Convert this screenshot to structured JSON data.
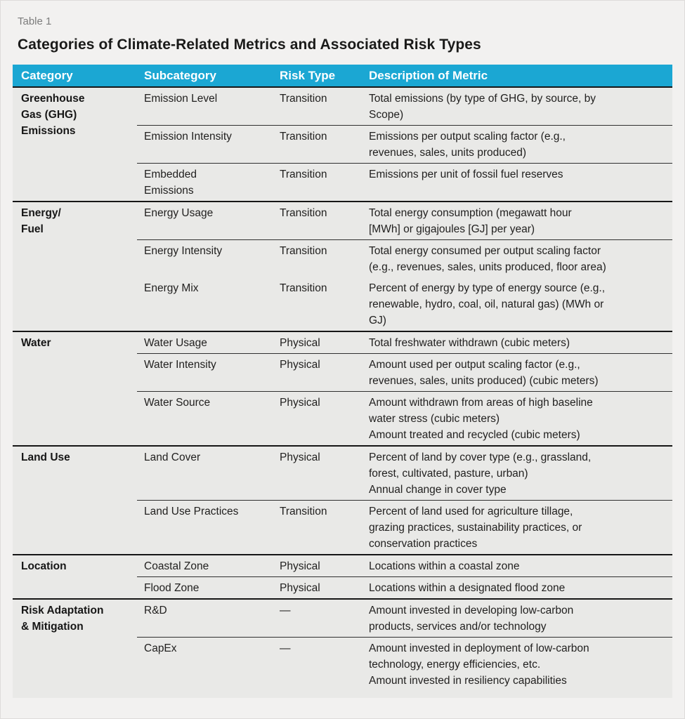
{
  "page": {
    "label": "Table 1",
    "title": "Categories of Climate-Related Metrics and Associated Risk Types"
  },
  "colors": {
    "header_bg": "#1BA7D3",
    "header_text": "#FFFFFF",
    "table_panel_bg": "#E9E9E7",
    "page_bg": "#F2F1F0",
    "group_rule": "#161616",
    "row_rule": "#2F2F2F"
  },
  "table": {
    "columns": [
      "Category",
      "Subcategory",
      "Risk Type",
      "Description of Metric"
    ],
    "groups": [
      {
        "category": "Greenhouse\nGas (GHG)\nEmissions",
        "rows": [
          {
            "subcategory": "Emission Level",
            "risk_type": "Transition",
            "description": "Total emissions (by type of GHG, by source, by\nScope)"
          },
          {
            "subcategory": "Emission Intensity",
            "risk_type": "Transition",
            "description": "Emissions per output scaling factor (e.g.,\nrevenues, sales, units produced)"
          },
          {
            "subcategory": "Embedded\nEmissions",
            "risk_type": "Transition",
            "description": "Emissions per unit of fossil fuel reserves"
          }
        ]
      },
      {
        "category": "Energy/\nFuel",
        "rows": [
          {
            "subcategory": "Energy Usage",
            "risk_type": "Transition",
            "description": "Total energy consumption (megawatt hour\n[MWh] or gigajoules [GJ] per year)"
          },
          {
            "subcategory": "Energy Intensity",
            "risk_type": "Transition",
            "description": "Total energy consumed per output scaling factor\n(e.g., revenues, sales, units produced, floor area)"
          },
          {
            "subcategory": "Energy Mix",
            "risk_type": "Transition",
            "description": "Percent of energy by type of energy source (e.g.,\nrenewable, hydro, coal, oil, natural gas) (MWh or\nGJ)"
          }
        ]
      },
      {
        "category": "Water",
        "rows": [
          {
            "subcategory": "Water Usage",
            "risk_type": "Physical",
            "description": "Total freshwater withdrawn (cubic meters)"
          },
          {
            "subcategory": "Water Intensity",
            "risk_type": "Physical",
            "description": "Amount used per output scaling factor (e.g.,\nrevenues, sales, units produced) (cubic meters)"
          },
          {
            "subcategory": "Water Source",
            "risk_type": "Physical",
            "description": "Amount withdrawn from areas of high baseline\nwater stress (cubic meters)\nAmount treated and recycled (cubic meters)"
          }
        ]
      },
      {
        "category": "Land Use",
        "rows": [
          {
            "subcategory": "Land Cover",
            "risk_type": "Physical",
            "description": "Percent of land by cover type (e.g., grassland,\nforest, cultivated, pasture, urban)\nAnnual change in cover type"
          },
          {
            "subcategory": "Land Use Practices",
            "risk_type": "Transition",
            "description": "Percent of land used for agriculture tillage,\ngrazing practices, sustainability practices, or\nconservation practices"
          }
        ]
      },
      {
        "category": "Location",
        "rows": [
          {
            "subcategory": "Coastal Zone",
            "risk_type": "Physical",
            "description": "Locations within a coastal zone"
          },
          {
            "subcategory": "Flood Zone",
            "risk_type": "Physical",
            "description": "Locations within a designated flood zone"
          }
        ]
      },
      {
        "category": "Risk Adaptation\n& Mitigation",
        "rows": [
          {
            "subcategory": "R&D",
            "risk_type": "—",
            "description": "Amount invested in developing low-carbon\nproducts, services and/or technology"
          },
          {
            "subcategory": "CapEx",
            "risk_type": "—",
            "description": "Amount invested in deployment of low-carbon\ntechnology, energy efficiencies, etc.\nAmount invested in resiliency capabilities"
          }
        ]
      }
    ]
  }
}
